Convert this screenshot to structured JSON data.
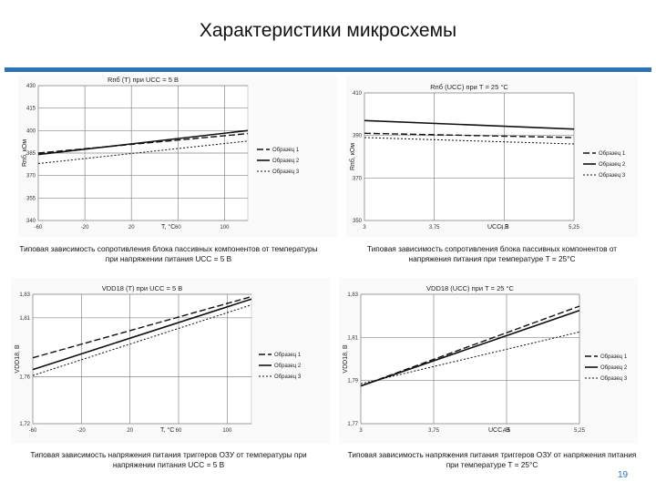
{
  "slide": {
    "title": "Характеристики микросхемы",
    "page_number": "19",
    "captions": [
      "Типовая зависимость сопротивления блока пассивных компонентов от температуры при напряжении питания UCC = 5 В",
      "Типовая зависимость сопротивления блока пассивных компонентов от напряжения питания при температуре T = 25°C",
      "Типовая зависимость напряжения питания триггеров ОЗУ от температуры при напряжении питания UCC = 5 В",
      "Типовая зависимость напряжения питания триггеров ОЗУ от напряжения питания при температуре T = 25°C"
    ]
  },
  "chart_data": [
    {
      "type": "line",
      "title": "Rпб (T) при UCC = 5 В",
      "xlabel": "T, °C",
      "ylabel": "Rпб, кОм",
      "xlim": [
        -60,
        120
      ],
      "ylim": [
        340,
        430
      ],
      "x_ticks": [
        "-60",
        "-20",
        "20",
        "60",
        "100"
      ],
      "y_ticks": [
        "340",
        "355",
        "370",
        "385",
        "400",
        "415",
        "430"
      ],
      "grid": true,
      "legend_position": "right",
      "series": [
        {
          "name": "Образец 1",
          "style": "dashed",
          "x": [
            -60,
            120
          ],
          "y": [
            385,
            398
          ]
        },
        {
          "name": "Образец 2",
          "style": "solid",
          "x": [
            -60,
            120
          ],
          "y": [
            384,
            400
          ]
        },
        {
          "name": "Образец 3",
          "style": "dotted",
          "x": [
            -60,
            120
          ],
          "y": [
            378,
            393
          ]
        }
      ]
    },
    {
      "type": "line",
      "title": "Rпб (UCC) при T = 25 °C",
      "xlabel": "UCC, В",
      "ylabel": "Rпб, кОм",
      "xlim": [
        3,
        5.25
      ],
      "ylim": [
        350,
        410
      ],
      "x_ticks": [
        "3",
        "3,75",
        "4,5",
        "5,25"
      ],
      "y_ticks": [
        "350",
        "370",
        "390",
        "410"
      ],
      "grid": true,
      "legend_position": "right",
      "series": [
        {
          "name": "Образец 1",
          "style": "dashed",
          "x": [
            3,
            5.25
          ],
          "y": [
            391,
            389
          ]
        },
        {
          "name": "Образец 2",
          "style": "solid",
          "x": [
            3,
            5.25
          ],
          "y": [
            397,
            393
          ]
        },
        {
          "name": "Образец 3",
          "style": "dotted",
          "x": [
            3,
            5.25
          ],
          "y": [
            389,
            386
          ]
        }
      ]
    },
    {
      "type": "line",
      "title": "VDD18 (T) при UCC = 5 В",
      "xlabel": "T, °C",
      "ylabel": "VDD18, В",
      "xlim": [
        -60,
        120
      ],
      "ylim": [
        1.72,
        1.83
      ],
      "x_ticks": [
        "-60",
        "-20",
        "20",
        "60",
        "100"
      ],
      "y_ticks": [
        "1,72",
        "1,76",
        "1,81",
        "1,83"
      ],
      "grid": true,
      "legend_position": "right",
      "series": [
        {
          "name": "Образец 1",
          "style": "dashed",
          "x": [
            -60,
            120
          ],
          "y": [
            1.776,
            1.828
          ]
        },
        {
          "name": "Образец 2",
          "style": "solid",
          "x": [
            -60,
            120
          ],
          "y": [
            1.766,
            1.826
          ]
        },
        {
          "name": "Образец 3",
          "style": "dotted",
          "x": [
            -60,
            120
          ],
          "y": [
            1.761,
            1.821
          ]
        }
      ]
    },
    {
      "type": "line",
      "title": "VDD18 (UCC) при T = 25 °C",
      "xlabel": "UCC, В",
      "ylabel": "VDD18, В",
      "xlim": [
        3,
        5.25
      ],
      "ylim": [
        1.77,
        1.83
      ],
      "x_ticks": [
        "3",
        "3,75",
        "4,5",
        "5,25"
      ],
      "y_ticks": [
        "1,77",
        "1,79",
        "1,81",
        "1,83"
      ],
      "grid": true,
      "legend_position": "right",
      "series": [
        {
          "name": "Образец 1",
          "style": "dashed",
          "x": [
            3,
            5.25
          ],
          "y": [
            1.7875,
            1.8245
          ]
        },
        {
          "name": "Образец 2",
          "style": "solid",
          "x": [
            3,
            5.25
          ],
          "y": [
            1.7875,
            1.8225
          ]
        },
        {
          "name": "Образец 3",
          "style": "dotted",
          "x": [
            3,
            5.25
          ],
          "y": [
            1.7885,
            1.8125
          ]
        }
      ]
    }
  ]
}
